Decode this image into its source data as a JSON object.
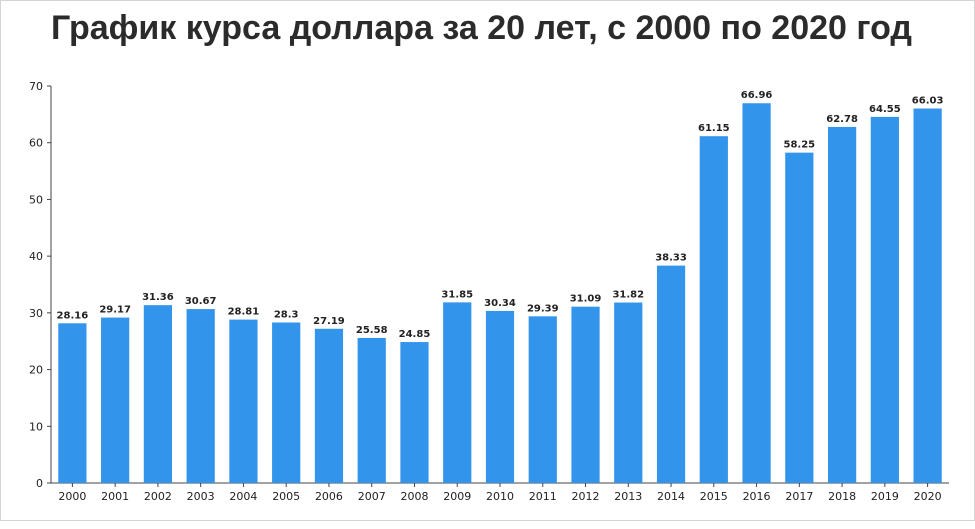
{
  "chart_data": {
    "type": "bar",
    "title": "График курса доллара за 20 лет, с 2000 по 2020 год",
    "xlabel": "",
    "ylabel": "",
    "ylim": [
      0,
      70
    ],
    "yticks": [
      "0",
      "10",
      "20",
      "30",
      "40",
      "50",
      "60",
      "70"
    ],
    "grid": false,
    "bar_color": "#3394eb",
    "categories": [
      "2000",
      "2001",
      "2002",
      "2003",
      "2004",
      "2005",
      "2006",
      "2007",
      "2008",
      "2009",
      "2010",
      "2011",
      "2012",
      "2013",
      "2014",
      "2015",
      "2016",
      "2017",
      "2018",
      "2019",
      "2020"
    ],
    "values": [
      28.16,
      29.17,
      31.36,
      30.67,
      28.81,
      28.3,
      27.19,
      25.58,
      24.85,
      31.85,
      30.34,
      29.39,
      31.09,
      31.82,
      38.33,
      61.15,
      66.96,
      58.25,
      62.78,
      64.55,
      66.03
    ],
    "value_labels": [
      "28.16",
      "29.17",
      "31.36",
      "30.67",
      "28.81",
      "28.3",
      "27.19",
      "25.58",
      "24.85",
      "31.85",
      "30.34",
      "29.39",
      "31.09",
      "31.82",
      "38.33",
      "61.15",
      "66.96",
      "58.25",
      "62.78",
      "64.55",
      "66.03"
    ]
  }
}
